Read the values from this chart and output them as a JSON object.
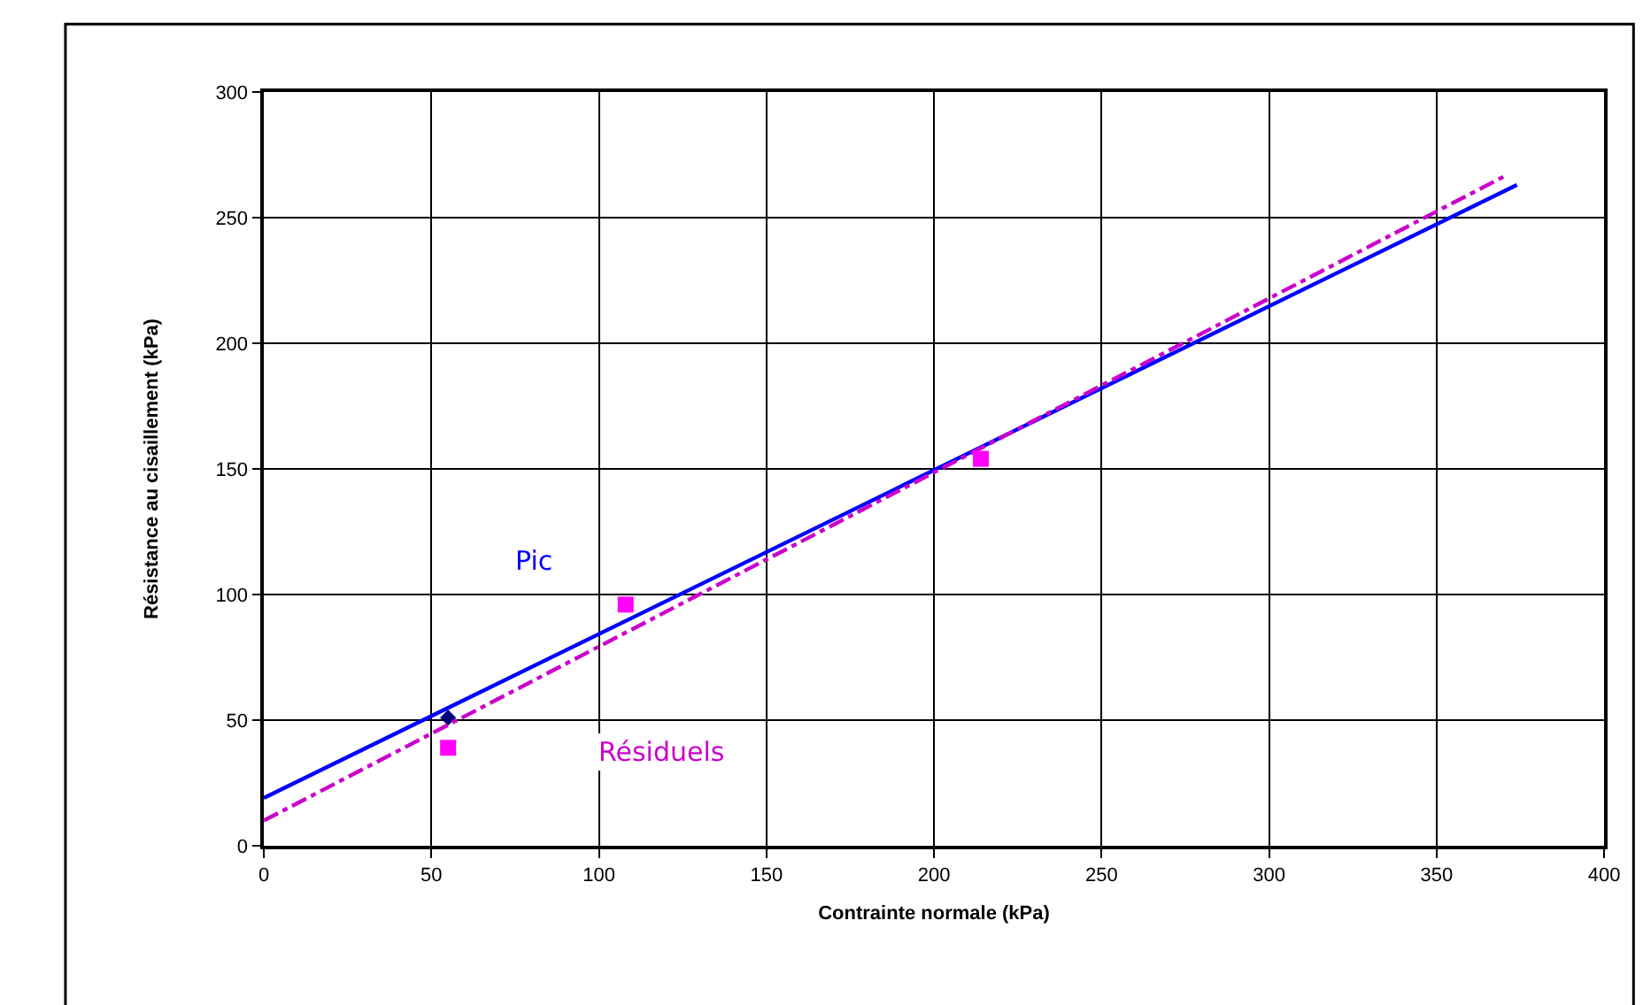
{
  "chart_data": {
    "type": "line",
    "xlabel": "Contrainte normale (kPa)",
    "ylabel": "Résistance au cisaillement (kPa)",
    "series": [
      {
        "name": "Pic",
        "color": "#0000ff",
        "x": [
          0,
          374
        ],
        "values": [
          19,
          263
        ],
        "line_style": "solid",
        "marker": "none"
      },
      {
        "type": "scatter",
        "color": "#000080",
        "x": [
          55
        ],
        "values": [
          51
        ],
        "marker": "diamond"
      },
      {
        "name": "Résiduels",
        "color": "#cc00cc",
        "x": [
          0,
          371
        ],
        "values": [
          10,
          267
        ],
        "line_style": "dashdot",
        "marker": "none"
      },
      {
        "type": "scatter",
        "color": "#ff00ff",
        "x": [
          55,
          108,
          214
        ],
        "values": [
          39,
          96,
          154
        ],
        "marker": "square"
      }
    ],
    "xlim": [
      0,
      400
    ],
    "xticks": [
      0,
      50,
      100,
      150,
      200,
      250,
      300,
      350,
      400
    ],
    "ylim": [
      0,
      300
    ],
    "yticks": [
      0,
      50,
      100,
      150,
      200,
      250,
      300
    ],
    "grid": true,
    "legend": false
  }
}
